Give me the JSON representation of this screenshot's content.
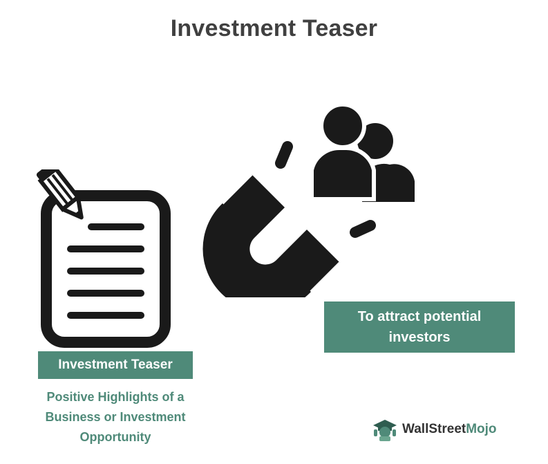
{
  "title": "Investment Teaser",
  "document_card": {
    "label": "Investment Teaser",
    "description_lines": [
      "Positive Highlights of a",
      "Business or Investment",
      "Opportunity"
    ]
  },
  "magnet_card": {
    "label_lines": [
      "To attract potential",
      "investors"
    ]
  },
  "icons": {
    "document": "document-with-pencil-icon",
    "magnet": "magnet-icon",
    "investors": "investors-icon",
    "brand_logo": "wallstreetmojo-logo-icon"
  },
  "brand": {
    "part1": "WallStreet",
    "part2": "Mojo"
  },
  "colors": {
    "accent": "#4f8a79",
    "icon": "#1a1a1a",
    "title": "#404040"
  }
}
